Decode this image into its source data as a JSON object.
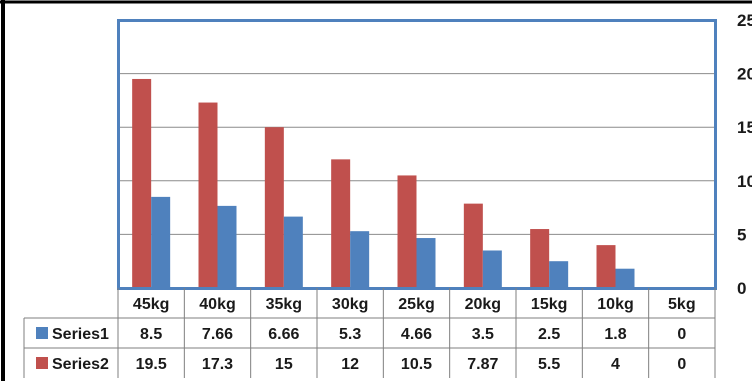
{
  "chart_data": {
    "type": "bar",
    "title": "",
    "xlabel": "",
    "ylabel": "",
    "categories": [
      "45kg",
      "40kg",
      "35kg",
      "30kg",
      "25kg",
      "20kg",
      "15kg",
      "10kg",
      "5kg"
    ],
    "series": [
      {
        "name": "Series1",
        "color": "#4F81BD",
        "values": [
          8.5,
          7.66,
          6.66,
          5.3,
          4.66,
          3.5,
          2.5,
          1.8,
          0
        ],
        "value_labels": [
          "8.5",
          "7.66",
          "6.66",
          "5.3",
          "4.66",
          "3.5",
          "2.5",
          "1.8",
          "0"
        ]
      },
      {
        "name": "Series2",
        "color": "#C0504D",
        "values": [
          19.5,
          17.3,
          15,
          12,
          10.5,
          7.87,
          5.5,
          4,
          0
        ],
        "value_labels": [
          "19.5",
          "17.3",
          "15",
          "12",
          "10.5",
          "7.87",
          "5.5",
          "4",
          "0"
        ]
      }
    ],
    "ylim": [
      0,
      25
    ],
    "yticks": [
      0,
      5,
      10,
      15,
      20,
      25
    ],
    "ytick_labels": [
      "0",
      "5",
      "10",
      "15",
      "20",
      "25"
    ],
    "y_axis_side": "right",
    "grid": true,
    "data_table": true,
    "legend": "in-data-table"
  }
}
